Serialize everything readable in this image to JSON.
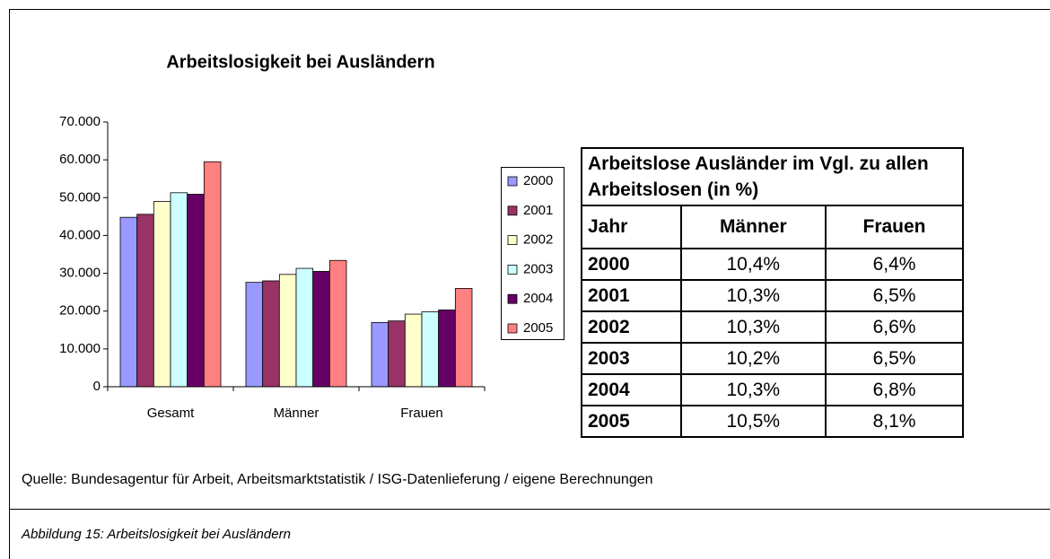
{
  "chart_data": {
    "type": "bar",
    "title": "Arbeitslosigkeit bei Ausländern",
    "categories": [
      "Gesamt",
      "Männer",
      "Frauen"
    ],
    "series": [
      {
        "name": "2000",
        "color": "#9999ff",
        "values": [
          44800,
          27600,
          17000
        ]
      },
      {
        "name": "2001",
        "color": "#993366",
        "values": [
          45600,
          28000,
          17400
        ]
      },
      {
        "name": "2002",
        "color": "#ffffcc",
        "values": [
          49000,
          29700,
          19200
        ]
      },
      {
        "name": "2003",
        "color": "#ccffff",
        "values": [
          51300,
          31300,
          19800
        ]
      },
      {
        "name": "2004",
        "color": "#660066",
        "values": [
          50900,
          30500,
          20300
        ]
      },
      {
        "name": "2005",
        "color": "#ff8080",
        "values": [
          59500,
          33400,
          26000
        ]
      }
    ],
    "ylim": [
      0,
      70000
    ],
    "yticks": [
      0,
      {
        "value": 10000,
        "label": "10.000"
      },
      {
        "value": 20000,
        "label": "20.000"
      },
      {
        "value": 30000,
        "label": "30.000"
      },
      {
        "value": 40000,
        "label": "40.000"
      },
      {
        "value": 50000,
        "label": "50.000"
      },
      {
        "value": 60000,
        "label": "60.000"
      },
      {
        "value": 70000,
        "label": "70.000"
      }
    ],
    "grid": false,
    "legend": "right"
  },
  "table": {
    "title": "Arbeitslose Ausländer im Vgl. zu allen Arbeitslosen (in %)",
    "header": [
      "Jahr",
      "Männer",
      "Frauen"
    ],
    "rows": [
      [
        "2000",
        "10,4%",
        "6,4%"
      ],
      [
        "2001",
        "10,3%",
        "6,5%"
      ],
      [
        "2002",
        "10,3%",
        "6,6%"
      ],
      [
        "2003",
        "10,2%",
        "6,5%"
      ],
      [
        "2004",
        "10,3%",
        "6,8%"
      ],
      [
        "2005",
        "10,5%",
        "8,1%"
      ]
    ]
  },
  "source": "Quelle: Bundesagentur für Arbeit, Arbeitsmarktstatistik / ISG-Datenlieferung / eigene Berechnungen",
  "caption": "Abbildung 15: Arbeitslosigkeit bei Ausländern"
}
